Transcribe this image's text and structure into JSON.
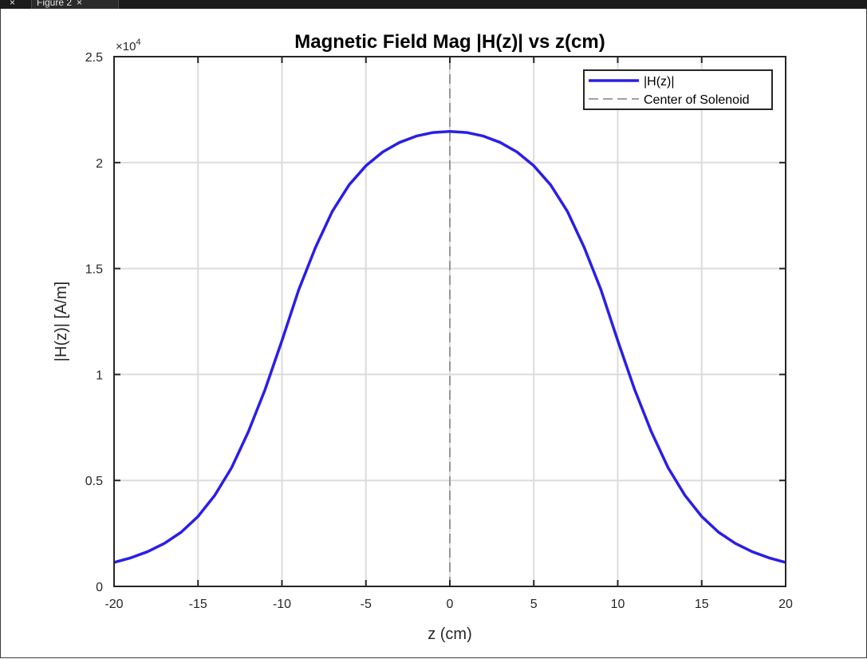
{
  "window": {
    "tabs": [
      {
        "label": "",
        "close": "×"
      },
      {
        "label": "Figure 2",
        "close": "×"
      }
    ]
  },
  "chart_data": {
    "type": "line",
    "title": "Magnetic Field Mag |H(z)| vs z(cm)",
    "xlabel": "z (cm)",
    "ylabel": "|H(z)| [A/m]",
    "y_exponent_label": "×10",
    "y_exponent_power": "4",
    "xlim": [
      -20,
      20
    ],
    "ylim": [
      0,
      25000
    ],
    "x_ticks": [
      -20,
      -15,
      -10,
      -5,
      0,
      5,
      10,
      15,
      20
    ],
    "x_tick_labels": [
      "-20",
      "-15",
      "-10",
      "-5",
      "0",
      "5",
      "10",
      "15",
      "20"
    ],
    "y_ticks": [
      0,
      5000,
      10000,
      15000,
      20000,
      25000
    ],
    "y_tick_labels": [
      "0",
      "0.5",
      "1",
      "1.5",
      "2",
      "2.5"
    ],
    "grid": true,
    "legend_position": "top-right",
    "series": [
      {
        "name": "|H(z)|",
        "color": "#2a1ee6",
        "style": "solid",
        "x": [
          -20,
          -19,
          -18,
          -17,
          -16,
          -15,
          -14,
          -13,
          -12,
          -11,
          -10,
          -9,
          -8,
          -7,
          -6,
          -5,
          -4,
          -3,
          -2,
          -1,
          0,
          1,
          2,
          3,
          4,
          5,
          6,
          7,
          8,
          9,
          10,
          11,
          12,
          13,
          14,
          15,
          16,
          17,
          18,
          19,
          20
        ],
        "y": [
          1130,
          1350,
          1640,
          2030,
          2560,
          3300,
          4300,
          5600,
          7300,
          9300,
          11600,
          14000,
          16000,
          17700,
          18950,
          19850,
          20500,
          20950,
          21250,
          21420,
          21470,
          21420,
          21250,
          20950,
          20500,
          19850,
          18950,
          17700,
          16000,
          14000,
          11600,
          9300,
          7300,
          5600,
          4300,
          3300,
          2560,
          2030,
          1640,
          1350,
          1130
        ]
      },
      {
        "name": "Center of Solenoid",
        "color": "#808080",
        "style": "dashed",
        "x": [
          0,
          0
        ],
        "y": [
          0,
          25000
        ]
      }
    ]
  }
}
